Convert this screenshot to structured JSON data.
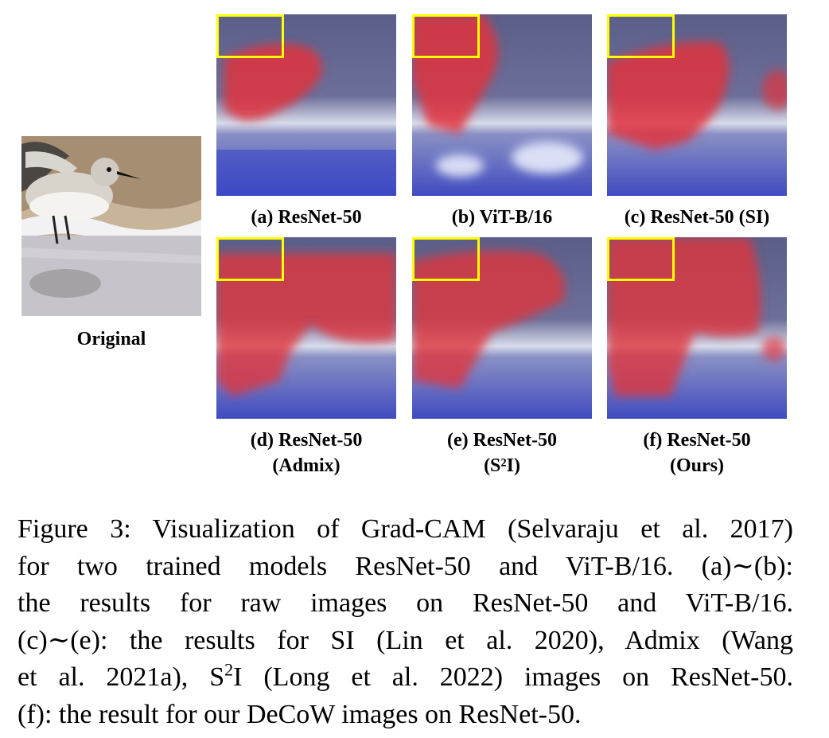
{
  "original": {
    "label": "Original"
  },
  "panels": [
    {
      "id": "a",
      "caption": "(a) ResNet-50",
      "caption2": ""
    },
    {
      "id": "b",
      "caption": "(b) ViT-B/16",
      "caption2": ""
    },
    {
      "id": "c",
      "caption": "(c) ResNet-50 (SI)",
      "caption2": ""
    },
    {
      "id": "d",
      "caption": "(d) ResNet-50",
      "caption2": "(Admix)"
    },
    {
      "id": "e",
      "caption": "(e) ResNet-50",
      "caption2": "(S²I)"
    },
    {
      "id": "f",
      "caption": "(f) ResNet-50",
      "caption2": "(Ours)"
    }
  ],
  "figure_caption": {
    "line1": "Figure 3: Visualization of Grad-CAM (Selvaraju et al. 2017)",
    "line2": "for two trained models ResNet-50 and ViT-B/16. (a)∼(b):",
    "line3": "the results for raw images on ResNet-50 and ViT-B/16.",
    "line4": "(c)∼(e): the results for SI  (Lin et al. 2020), Admix  (Wang",
    "line5_a": "et al. 2021a), S",
    "line5_sup": "2",
    "line5_b": "I (Long et al. 2022) images on ResNet-50.",
    "line6": "(f): the result for our DeCoW images on ResNet-50."
  },
  "colors": {
    "highlight_box": "#ffff00",
    "heat_red": "#e0343c",
    "heat_blue": "#3848d8"
  }
}
